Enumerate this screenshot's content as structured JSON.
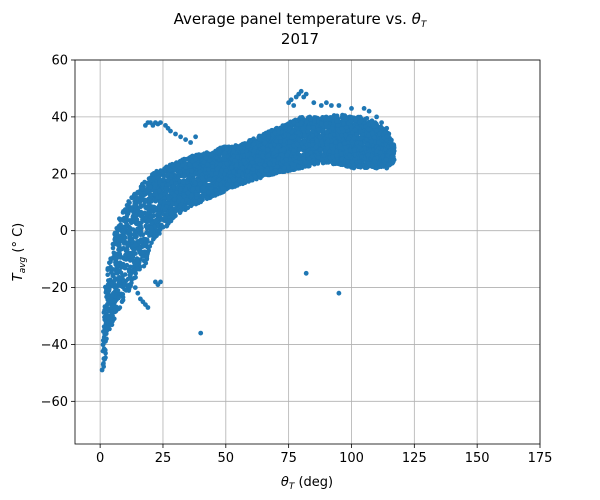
{
  "chart_data": {
    "type": "scatter",
    "title_line1_prefix": "Average panel temperature vs. ",
    "title_line1_symbol": "θ",
    "title_line1_subscript": "T",
    "title_line2": "2017",
    "xlabel_symbol": "θ",
    "xlabel_subscript": "T",
    "xlabel_suffix": " (deg)",
    "ylabel_symbol": "T",
    "ylabel_subscript": "avg",
    "ylabel_suffix": " (° C)",
    "xlim": [
      -10,
      175
    ],
    "ylim": [
      -75,
      60
    ],
    "xticks": [
      0,
      25,
      50,
      75,
      100,
      125,
      150,
      175
    ],
    "yticks": [
      -60,
      -40,
      -20,
      0,
      20,
      40,
      60
    ],
    "grid": true,
    "color": "#1f77b4",
    "envelope": [
      [
        1,
        -50,
        -35
      ],
      [
        2,
        -46,
        -20
      ],
      [
        3,
        -40,
        -12
      ],
      [
        4,
        -35,
        -8
      ],
      [
        5,
        -33,
        -3
      ],
      [
        6,
        -30,
        0
      ],
      [
        7,
        -28,
        3
      ],
      [
        8,
        -27,
        5
      ],
      [
        10,
        -24,
        8
      ],
      [
        12,
        -20,
        12
      ],
      [
        15,
        -15,
        15
      ],
      [
        18,
        -12,
        18
      ],
      [
        20,
        -5,
        20
      ],
      [
        25,
        0,
        22
      ],
      [
        30,
        5,
        24
      ],
      [
        35,
        8,
        26
      ],
      [
        40,
        10,
        27
      ],
      [
        45,
        12,
        28
      ],
      [
        50,
        14,
        30
      ],
      [
        55,
        16,
        30
      ],
      [
        60,
        17,
        32
      ],
      [
        65,
        19,
        34
      ],
      [
        70,
        20,
        36
      ],
      [
        75,
        21,
        38
      ],
      [
        80,
        22,
        40
      ],
      [
        85,
        23,
        40
      ],
      [
        90,
        24,
        40
      ],
      [
        95,
        23,
        41
      ],
      [
        100,
        22,
        40
      ],
      [
        105,
        22,
        40
      ],
      [
        110,
        22,
        38
      ],
      [
        115,
        23,
        34
      ],
      [
        117,
        24,
        30
      ]
    ],
    "points": [
      [
        0.8,
        -49
      ],
      [
        1.2,
        -47
      ],
      [
        1.5,
        -45
      ],
      [
        2,
        -42
      ],
      [
        2.5,
        -38
      ],
      [
        3,
        -34
      ],
      [
        18,
        37
      ],
      [
        19,
        38
      ],
      [
        20,
        38
      ],
      [
        21,
        37
      ],
      [
        22,
        38
      ],
      [
        23,
        37.5
      ],
      [
        24,
        38
      ],
      [
        26,
        37
      ],
      [
        27,
        36
      ],
      [
        28,
        35
      ],
      [
        30,
        34
      ],
      [
        32,
        33
      ],
      [
        34,
        32
      ],
      [
        36,
        31
      ],
      [
        38,
        33
      ],
      [
        14,
        -20
      ],
      [
        15,
        -22
      ],
      [
        16,
        -24
      ],
      [
        17,
        -25
      ],
      [
        18,
        -26
      ],
      [
        19,
        -27
      ],
      [
        22,
        -18
      ],
      [
        23,
        -19
      ],
      [
        24,
        -18
      ],
      [
        40,
        -36
      ],
      [
        82,
        -15
      ],
      [
        95,
        -22
      ],
      [
        75,
        45
      ],
      [
        76,
        46
      ],
      [
        77,
        44
      ],
      [
        78,
        47
      ],
      [
        79,
        48
      ],
      [
        80,
        49
      ],
      [
        81,
        47
      ],
      [
        82,
        48
      ],
      [
        85,
        45
      ],
      [
        88,
        44
      ],
      [
        90,
        45
      ],
      [
        92,
        44
      ],
      [
        95,
        44
      ],
      [
        100,
        43
      ],
      [
        105,
        43
      ],
      [
        107,
        42
      ],
      [
        110,
        40
      ],
      [
        112,
        38
      ],
      [
        114,
        36
      ],
      [
        116,
        30
      ],
      [
        117,
        28
      ],
      [
        110,
        22
      ],
      [
        112,
        23
      ],
      [
        114,
        22
      ],
      [
        115,
        23
      ]
    ]
  }
}
